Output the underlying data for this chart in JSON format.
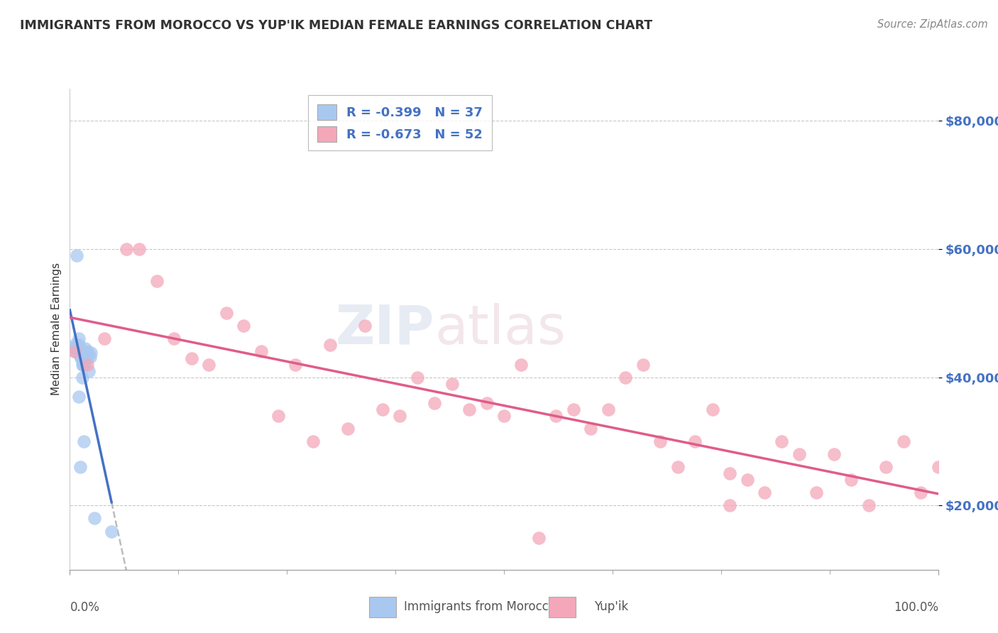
{
  "title": "IMMIGRANTS FROM MOROCCO VS YUP'IK MEDIAN FEMALE EARNINGS CORRELATION CHART",
  "source": "Source: ZipAtlas.com",
  "ylabel": "Median Female Earnings",
  "y_ticks": [
    20000,
    40000,
    60000,
    80000
  ],
  "y_tick_labels": [
    "$20,000",
    "$40,000",
    "$60,000",
    "$80,000"
  ],
  "xlim": [
    0.0,
    100.0
  ],
  "ylim": [
    10000,
    85000
  ],
  "legend_r1": "R = -0.399",
  "legend_n1": "N = 37",
  "legend_r2": "R = -0.673",
  "legend_n2": "N = 52",
  "color_morocco": "#a8c8f0",
  "color_yupik": "#f4a7b9",
  "color_line_morocco": "#4472c4",
  "color_line_yupik": "#e05c8a",
  "color_text_blue": "#4472c4",
  "background": "#ffffff",
  "grid_color": "#c8c8c8",
  "watermark_zip": "ZIP",
  "watermark_atlas": "atlas",
  "morocco_x": [
    0.5,
    0.7,
    0.8,
    0.9,
    1.0,
    1.0,
    1.1,
    1.2,
    1.3,
    1.4,
    1.5,
    1.6,
    1.7,
    1.8,
    1.9,
    2.0,
    2.1,
    2.2,
    2.3,
    2.4,
    0.6,
    0.8,
    1.0,
    1.2,
    1.5,
    0.9,
    1.1,
    0.7,
    1.3,
    1.6,
    0.5,
    1.0,
    0.8,
    1.4,
    4.8,
    1.2,
    2.8
  ],
  "morocco_y": [
    44000,
    44500,
    44200,
    44600,
    45000,
    46000,
    43500,
    44000,
    43500,
    40000,
    42500,
    42000,
    42800,
    44500,
    44000,
    43000,
    43800,
    41000,
    43200,
    43800,
    45200,
    44800,
    44200,
    44100,
    42000,
    44800,
    44200,
    44500,
    43000,
    30000,
    44700,
    37000,
    59000,
    42000,
    16000,
    26000,
    18000
  ],
  "yupik_x": [
    0.5,
    2.0,
    4.0,
    6.5,
    8.0,
    10.0,
    14.0,
    16.0,
    18.0,
    20.0,
    22.0,
    26.0,
    30.0,
    34.0,
    36.0,
    40.0,
    42.0,
    44.0,
    46.0,
    50.0,
    52.0,
    56.0,
    60.0,
    62.0,
    64.0,
    66.0,
    68.0,
    70.0,
    72.0,
    74.0,
    76.0,
    80.0,
    82.0,
    84.0,
    86.0,
    88.0,
    90.0,
    92.0,
    94.0,
    96.0,
    98.0,
    100.0,
    12.0,
    24.0,
    38.0,
    48.0,
    58.0,
    78.0,
    32.0,
    54.0,
    28.0,
    76.0
  ],
  "yupik_y": [
    44000,
    42000,
    46000,
    60000,
    60000,
    55000,
    43000,
    42000,
    50000,
    48000,
    44000,
    42000,
    45000,
    48000,
    35000,
    40000,
    36000,
    39000,
    35000,
    34000,
    42000,
    34000,
    32000,
    35000,
    40000,
    42000,
    30000,
    26000,
    30000,
    35000,
    25000,
    22000,
    30000,
    28000,
    22000,
    28000,
    24000,
    20000,
    26000,
    30000,
    22000,
    26000,
    46000,
    34000,
    34000,
    36000,
    35000,
    24000,
    32000,
    15000,
    30000,
    20000
  ]
}
